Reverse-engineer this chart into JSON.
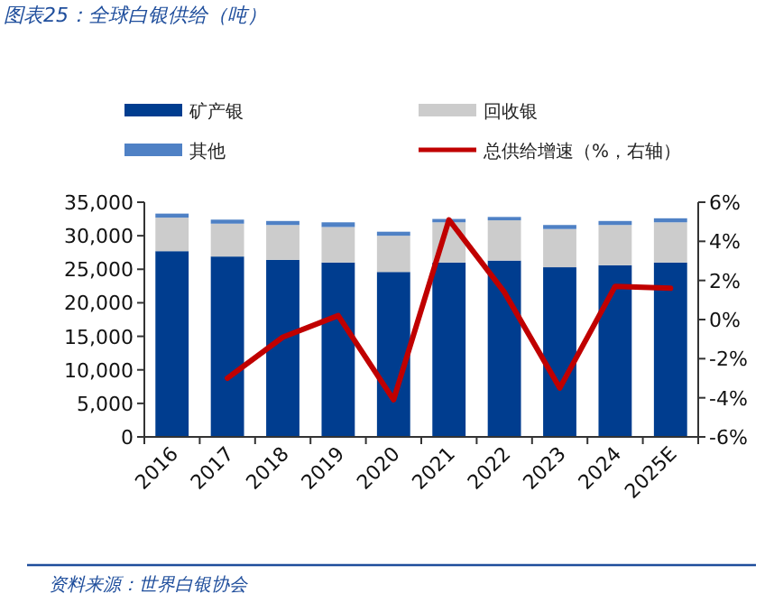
{
  "chart_data": {
    "type": "bar",
    "title": "图表25：全球白银供给（吨）",
    "stacked": true,
    "legend": "top",
    "categories": [
      "2016",
      "2017",
      "2018",
      "2019",
      "2020",
      "2021",
      "2022",
      "2023",
      "2024",
      "2025E"
    ],
    "series": [
      {
        "name": "矿产银",
        "color": "#003d8f",
        "values": [
          27700,
          26900,
          26400,
          26000,
          24600,
          26000,
          26300,
          25300,
          25600,
          26000
        ]
      },
      {
        "name": "回收银",
        "color": "#cccccc",
        "values": [
          5000,
          4900,
          5200,
          5300,
          5400,
          6000,
          6000,
          5700,
          6000,
          6000
        ]
      },
      {
        "name": "其他",
        "color": "#4f81c5",
        "values": [
          600,
          600,
          600,
          700,
          600,
          500,
          500,
          600,
          600,
          600
        ]
      },
      {
        "name": "总供给增速（%，右轴）",
        "color": "#c00000",
        "type": "line",
        "axis": "y2",
        "values": [
          null,
          -3.0,
          -0.9,
          0.2,
          -4.1,
          5.1,
          1.4,
          -3.5,
          1.7,
          1.6
        ]
      }
    ],
    "ylim": [
      0,
      35000
    ],
    "yticks": [
      {
        "value": 0,
        "label": "0"
      },
      {
        "value": 5000,
        "label": "5,000"
      },
      {
        "value": 10000,
        "label": "10,000"
      },
      {
        "value": 15000,
        "label": "15,000"
      },
      {
        "value": 20000,
        "label": "20,000"
      },
      {
        "value": 25000,
        "label": "25,000"
      },
      {
        "value": 30000,
        "label": "30,000"
      },
      {
        "value": 35000,
        "label": "35,000"
      }
    ],
    "y2lim": [
      -6,
      6
    ],
    "y2ticks": [
      {
        "value": -6,
        "label": "-6%"
      },
      {
        "value": -4,
        "label": "-4%"
      },
      {
        "value": -2,
        "label": "-2%"
      },
      {
        "value": 0,
        "label": "0%"
      },
      {
        "value": 2,
        "label": "2%"
      },
      {
        "value": 4,
        "label": "4%"
      },
      {
        "value": 6,
        "label": "6%"
      }
    ],
    "annotations": [
      "资料来源：世界白银协会"
    ]
  }
}
